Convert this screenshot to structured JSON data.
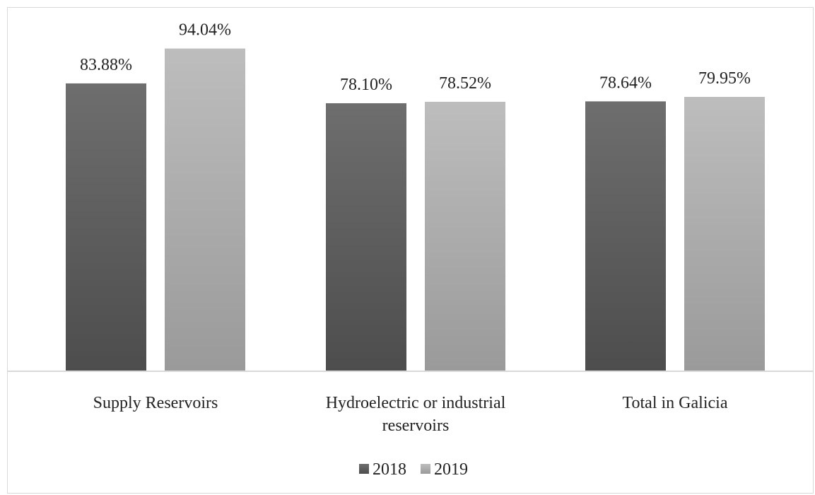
{
  "chart_data": {
    "type": "bar",
    "categories": [
      "Supply Reservoirs",
      "Hydroelectric or industrial reservoirs",
      "Total in Galicia"
    ],
    "category_lines": [
      [
        "Supply Reservoirs"
      ],
      [
        "Hydroelectric or industrial",
        "reservoirs"
      ],
      [
        "Total in Galicia"
      ]
    ],
    "series": [
      {
        "name": "2018",
        "values": [
          83.88,
          78.1,
          78.64
        ],
        "labels": [
          "83.88%",
          "78.10%",
          "78.64%"
        ]
      },
      {
        "name": "2019",
        "values": [
          94.04,
          78.52,
          79.95
        ],
        "labels": [
          "94.04%",
          "78.52%",
          "79.95%"
        ]
      }
    ],
    "ylim": [
      0,
      100
    ],
    "grid": false,
    "legend": "bottom-center",
    "colors": {
      "2018": [
        "#6e6e6e",
        "#4d4d4d"
      ],
      "2019": [
        "#bdbdbd",
        "#9a9a9a"
      ]
    }
  }
}
